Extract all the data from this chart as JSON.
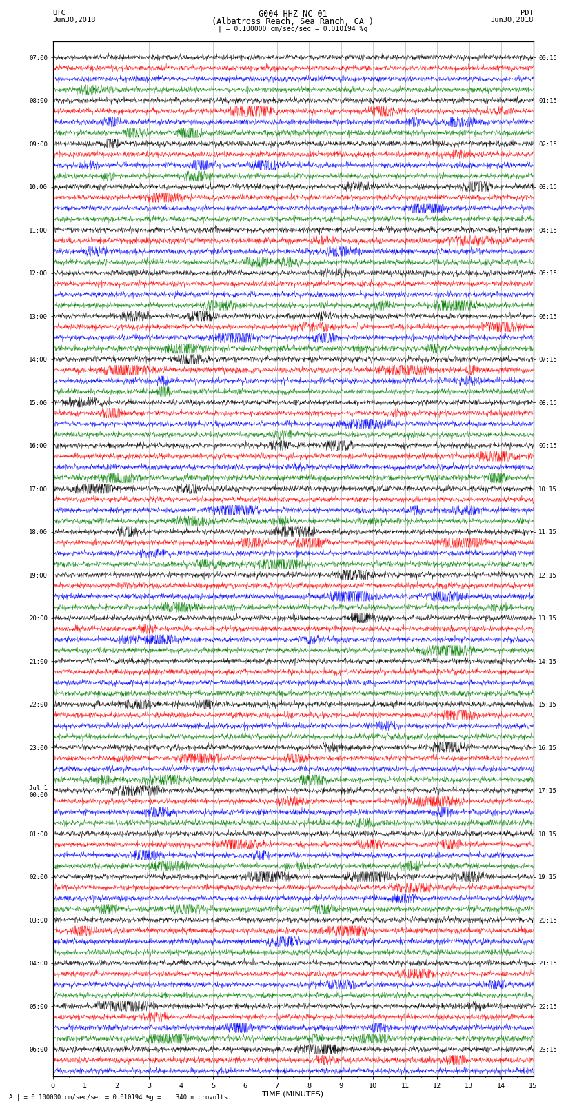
{
  "title_line1": "G004 HHZ NC 01",
  "title_line2": "(Albatross Reach, Sea Ranch, CA )",
  "scale_label": "| = 0.100000 cm/sec/sec = 0.010194 %g",
  "bottom_label": "A | = 0.100000 cm/sec/sec = 0.010194 %g =    340 microvolts.",
  "xlabel": "TIME (MINUTES)",
  "utc_times": [
    "07:00",
    "",
    "",
    "",
    "08:00",
    "",
    "",
    "",
    "09:00",
    "",
    "",
    "",
    "10:00",
    "",
    "",
    "",
    "11:00",
    "",
    "",
    "",
    "12:00",
    "",
    "",
    "",
    "13:00",
    "",
    "",
    "",
    "14:00",
    "",
    "",
    "",
    "15:00",
    "",
    "",
    "",
    "16:00",
    "",
    "",
    "",
    "17:00",
    "",
    "",
    "",
    "18:00",
    "",
    "",
    "",
    "19:00",
    "",
    "",
    "",
    "20:00",
    "",
    "",
    "",
    "21:00",
    "",
    "",
    "",
    "22:00",
    "",
    "",
    "",
    "23:00",
    "",
    "",
    "",
    "Jul 1\n00:00",
    "",
    "",
    "",
    "01:00",
    "",
    "",
    "",
    "02:00",
    "",
    "",
    "",
    "03:00",
    "",
    "",
    "",
    "04:00",
    "",
    "",
    "",
    "05:00",
    "",
    "",
    "",
    "06:00",
    "",
    ""
  ],
  "pdt_times": [
    "00:15",
    "",
    "",
    "",
    "01:15",
    "",
    "",
    "",
    "02:15",
    "",
    "",
    "",
    "03:15",
    "",
    "",
    "",
    "04:15",
    "",
    "",
    "",
    "05:15",
    "",
    "",
    "",
    "06:15",
    "",
    "",
    "",
    "07:15",
    "",
    "",
    "",
    "08:15",
    "",
    "",
    "",
    "09:15",
    "",
    "",
    "",
    "10:15",
    "",
    "",
    "",
    "11:15",
    "",
    "",
    "",
    "12:15",
    "",
    "",
    "",
    "13:15",
    "",
    "",
    "",
    "14:15",
    "",
    "",
    "",
    "15:15",
    "",
    "",
    "",
    "16:15",
    "",
    "",
    "",
    "17:15",
    "",
    "",
    "",
    "18:15",
    "",
    "",
    "",
    "19:15",
    "",
    "",
    "",
    "20:15",
    "",
    "",
    "",
    "21:15",
    "",
    "",
    "",
    "22:15",
    "",
    "",
    "",
    "23:15",
    "",
    ""
  ],
  "trace_colors": [
    "black",
    "red",
    "blue",
    "green"
  ],
  "xmin": 0,
  "xmax": 15,
  "noise_amplitude": 0.3,
  "bg_color": "white",
  "fig_width": 8.5,
  "fig_height": 16.13
}
